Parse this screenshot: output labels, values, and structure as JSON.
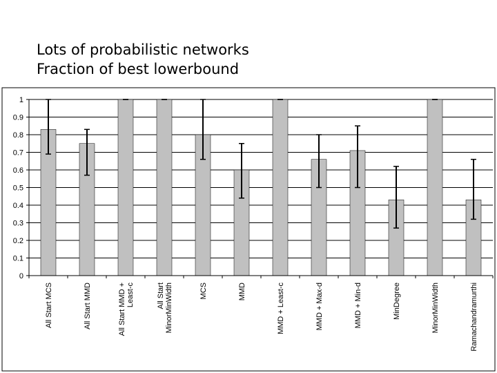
{
  "slide": {
    "title": "Lots of probabilistic networks",
    "subtitle": "Fraction of best lowerbound"
  },
  "chart_data": {
    "type": "bar",
    "title": "",
    "xlabel": "",
    "ylabel": "",
    "ylim": [
      0,
      1
    ],
    "yticks": [
      0,
      0.1,
      0.2,
      0.3,
      0.4,
      0.5,
      0.6,
      0.7,
      0.8,
      0.9,
      1
    ],
    "ytick_labels": [
      "0",
      "0.1",
      "0.2",
      "0.3",
      "0.4",
      "0.5",
      "0.6",
      "0.7",
      "0.8",
      "0.9",
      "1"
    ],
    "grid": "horizontal major lines",
    "legend": "none",
    "bar_color": "#c0c0c0",
    "categories": [
      [
        "All Start MCS"
      ],
      [
        "All Start MMD"
      ],
      [
        "All Start MMD +",
        "Least-c"
      ],
      [
        "All Start",
        "MinorMinWidth"
      ],
      [
        "MCS"
      ],
      [
        "MMD"
      ],
      [
        "MMD + Least-c"
      ],
      [
        "MMD + Max-d"
      ],
      [
        "MMD + Min-d"
      ],
      [
        "MinDegree"
      ],
      [
        "MinorMinWidth"
      ],
      [
        "Ramachandramurthi"
      ]
    ],
    "values": [
      0.83,
      0.75,
      1.0,
      1.0,
      0.8,
      0.6,
      1.0,
      0.66,
      0.71,
      0.43,
      1.0,
      0.43
    ],
    "error_low": [
      0.69,
      0.57,
      1.0,
      1.0,
      0.66,
      0.44,
      1.0,
      0.5,
      0.5,
      0.27,
      1.0,
      0.32
    ],
    "error_high": [
      1.0,
      0.83,
      1.0,
      1.0,
      1.0,
      0.75,
      1.0,
      0.8,
      0.85,
      0.62,
      1.0,
      0.66
    ]
  }
}
